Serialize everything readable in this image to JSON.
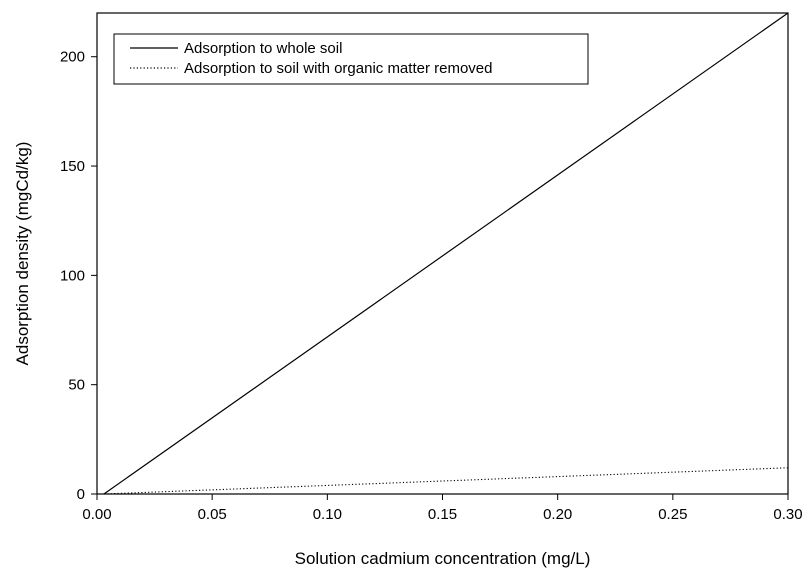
{
  "chart_data": {
    "type": "line",
    "title": "",
    "xlabel": "Solution cadmium concentration (mg/L)",
    "ylabel": "Adsorption density (mgCd/kg)",
    "xlim": [
      0.0,
      0.3
    ],
    "ylim": [
      0,
      220
    ],
    "x_ticks": [
      "0.00",
      "0.05",
      "0.10",
      "0.15",
      "0.20",
      "0.25",
      "0.30"
    ],
    "y_ticks": [
      "0",
      "50",
      "100",
      "150",
      "200"
    ],
    "grid": false,
    "legend_position": "top-left",
    "series": [
      {
        "name": "Adsorption to whole soil",
        "style": "solid",
        "color": "#000000",
        "points": [
          [
            0.003,
            0
          ],
          [
            0.3,
            220
          ]
        ]
      },
      {
        "name": "Adsorption to soil with organic matter removed",
        "style": "dotted",
        "color": "#000000",
        "points": [
          [
            0.003,
            0
          ],
          [
            0.3,
            12
          ]
        ]
      }
    ]
  }
}
